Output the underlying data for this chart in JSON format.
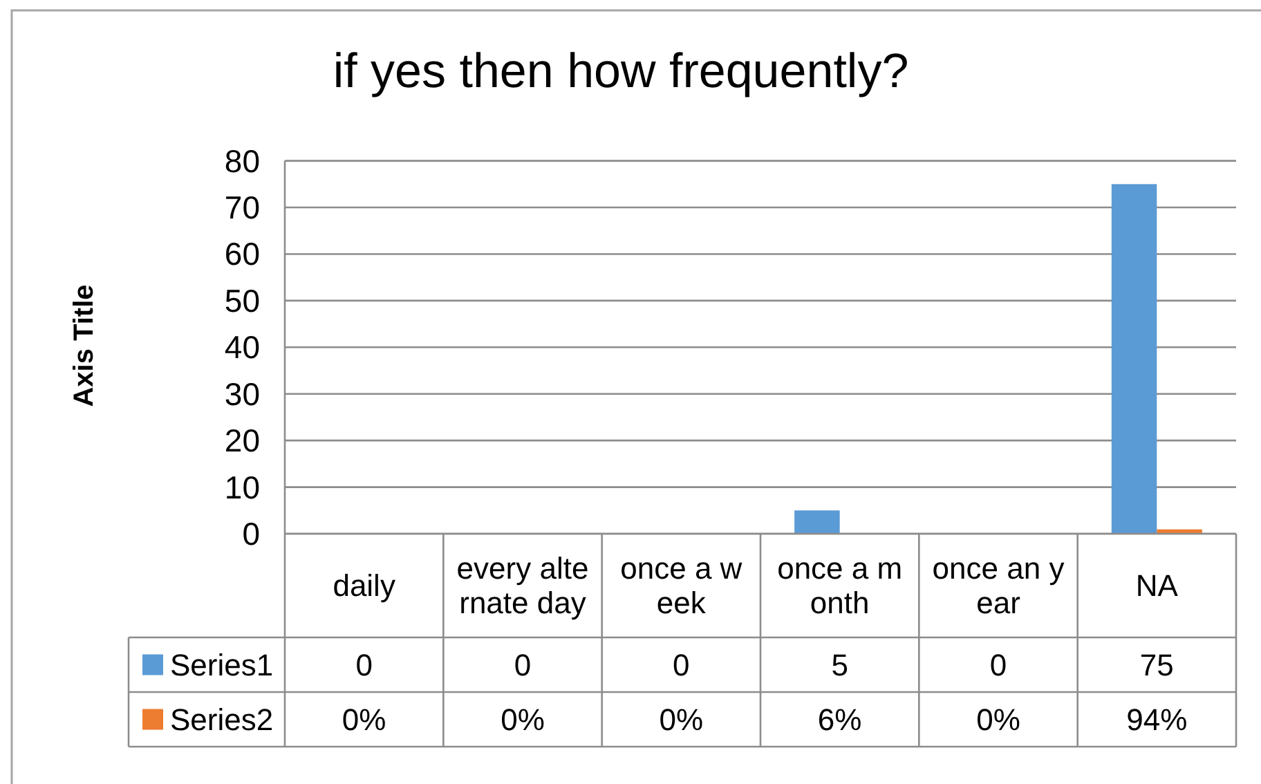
{
  "chart_data": {
    "type": "bar",
    "title": "if yes then how frequently?",
    "ylabel": "Axis Title",
    "categories": [
      "daily",
      "every alternate day",
      "once a week",
      "once a month",
      "once an year",
      "NA"
    ],
    "series": [
      {
        "name": "Series1",
        "color": "#5b9bd5",
        "values": [
          0,
          0,
          0,
          5,
          0,
          75
        ],
        "value_labels": [
          "0",
          "0",
          "0",
          "5",
          "0",
          "75"
        ]
      },
      {
        "name": "Series2",
        "color": "#ed7d31",
        "values": [
          0,
          0,
          0,
          0.06,
          0,
          0.94
        ],
        "value_labels": [
          "0%",
          "0%",
          "0%",
          "6%",
          "0%",
          "94%"
        ]
      }
    ],
    "ylim": [
      0,
      80
    ],
    "yticks": [
      0,
      10,
      20,
      30,
      40,
      50,
      60,
      70,
      80
    ],
    "grid": "y",
    "legend": "bottom left"
  }
}
